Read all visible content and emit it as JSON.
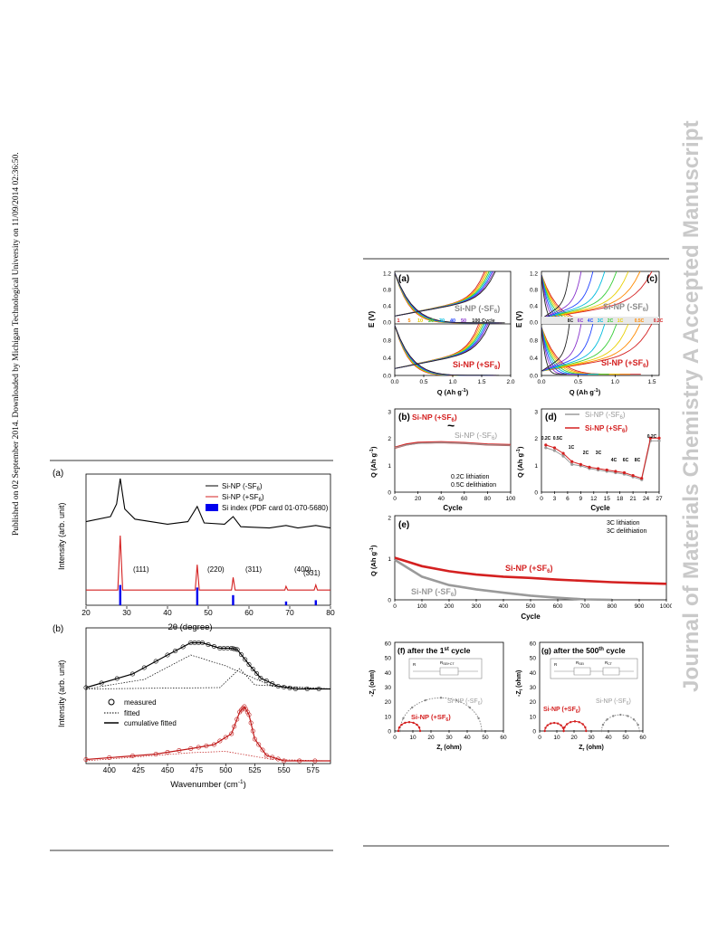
{
  "side_notice": "Published on 02 September 2014. Downloaded by Michigan Technological University on 11/09/2014 02:36:50.",
  "watermark": "Journal of Materials Chemistry A Accepted Manuscript",
  "left_figure": {
    "panel_a": {
      "label": "(a)",
      "legend": [
        "Si-NP (-SF",
        "Si-NP (+SF",
        "Si index (PDF card 01-070-5680)"
      ],
      "legend_sub": "6",
      "legend_close": ")",
      "peaks": [
        "(111)",
        "(220)",
        "(311)",
        "(400)",
        "(331)"
      ],
      "ylabel": "Intensity (arb. unit)",
      "xticks": [
        "20",
        "30",
        "40",
        "50",
        "60",
        "70",
        "80"
      ],
      "xlabel": "2θ (degree)",
      "colors": {
        "minus": "#000000",
        "plus": "#d42020",
        "index": "#0000ee"
      }
    },
    "panel_b": {
      "label": "(b)",
      "legend": [
        "measured",
        "fitted",
        "cumulative fitted"
      ],
      "ylabel": "Intensity (arb. unit)",
      "xticks": [
        "400",
        "425",
        "450",
        "475",
        "500",
        "525",
        "550",
        "575"
      ],
      "xlabel": "Wavenumber (cm",
      "xlabel_sup": "-1",
      "xlabel_close": ")"
    }
  },
  "right_figure": {
    "panel_a": {
      "label": "(a)",
      "upper": "Si-NP (-SF",
      "lower": "Si-NP (+SF",
      "sub": "6",
      "close": ")",
      "cycles": [
        "1",
        "5",
        "10",
        "20",
        "30",
        "40",
        "50",
        "100 Cycle"
      ],
      "yticks": [
        "1.2",
        "0.8",
        "0.4",
        "0.0"
      ],
      "xticks": [
        "0.0",
        "0.5",
        "1.0",
        "1.5",
        "2.0"
      ],
      "ylabel": "E (V)",
      "xlabel": "Q (Ah g",
      "xlabel_sup": "-1",
      "xlabel_close": ")"
    },
    "panel_c": {
      "label": "(c)",
      "upper": "Si-NP (-SF",
      "lower": "Si-NP (+SF",
      "sub": "6",
      "close": ")",
      "rates": [
        "8C",
        "6C",
        "4C",
        "3C",
        "2C",
        "1C",
        "0.5C",
        "0.2C"
      ],
      "yticks": [
        "1.2",
        "0.8",
        "0.4",
        "0.0"
      ],
      "xticks": [
        "0.0",
        "0.5",
        "1.0",
        "1.5"
      ],
      "ylabel": "E (V)",
      "xlabel": "Q (Ah g",
      "xlabel_sup": "-1",
      "xlabel_close": ")"
    },
    "panel_b": {
      "label": "(b)",
      "plus": "Si-NP (+SF",
      "minus": "Si-NP (-SF",
      "sub": "6",
      "close": ")",
      "approx": "~",
      "note1": "0.2C lithiation",
      "note2": "0.5C delithiation",
      "yticks": [
        "3",
        "2",
        "1",
        "0"
      ],
      "xticks": [
        "0",
        "20",
        "40",
        "60",
        "80",
        "100"
      ],
      "ylabel": "Q (Ah g",
      "ylabel_sup": "-1",
      "ylabel_close": ")",
      "xlabel": "Cycle"
    },
    "panel_d": {
      "label": "(d)",
      "minus": "Si-NP (-SF",
      "plus": "Si-NP (+SF",
      "sub": "6",
      "close": ")",
      "rates": [
        "0.2C",
        "0.5C",
        "1C",
        "2C",
        "3C",
        "4C",
        "6C",
        "8C",
        "0.2C"
      ],
      "yticks": [
        "3",
        "2",
        "1",
        "0"
      ],
      "xticks": [
        "0",
        "3",
        "6",
        "9",
        "12",
        "15",
        "18",
        "21",
        "24",
        "27"
      ],
      "ylabel": "Q (Ah g",
      "ylabel_sup": "-1",
      "ylabel_close": ")",
      "xlabel": "Cycle"
    },
    "panel_e": {
      "label": "(e)",
      "note1": "3C lithiation",
      "note2": "3C delithiation",
      "plus": "Si-NP (+SF",
      "minus": "Si-NP (-SF",
      "sub": "6",
      "close": ")",
      "yticks": [
        "2",
        "1",
        "0"
      ],
      "xticks": [
        "0",
        "100",
        "200",
        "300",
        "400",
        "500",
        "600",
        "700",
        "800",
        "900",
        "1000"
      ],
      "ylabel": "Q (Ah g",
      "ylabel_sup": "-1",
      "ylabel_close": ")",
      "xlabel": "Cycle"
    },
    "panel_f": {
      "label": "(f) after the 1",
      "sup": "st",
      "tail": " cycle",
      "plus": "Si-NP (+SF",
      "minus": "Si-NP (-SF",
      "sub": "6",
      "close": ")",
      "circuit": [
        "R",
        "R",
        "SEI+CT"
      ],
      "yticks": [
        "60",
        "50",
        "40",
        "30",
        "20",
        "10",
        "0"
      ],
      "xticks": [
        "0",
        "10",
        "20",
        "30",
        "40",
        "50",
        "60"
      ],
      "ylabel": "-Z",
      "ylabel_sub": "i",
      "ylabel_tail": " (ohm)",
      "xlabel": "Z",
      "xlabel_sub": "r",
      "xlabel_tail": " (ohm)"
    },
    "panel_g": {
      "label": "(g) after the 500",
      "sup": "th",
      "tail": " cycle",
      "plus": "Si-NP (+SF",
      "minus": "Si-NP (-SF",
      "sub": "6",
      "close": ")",
      "circuit": [
        "R",
        "R",
        "SEI",
        "R",
        "CT"
      ],
      "yticks": [
        "60",
        "50",
        "40",
        "30",
        "20",
        "10",
        "0"
      ],
      "xticks": [
        "0",
        "10",
        "20",
        "30",
        "40",
        "50",
        "60"
      ],
      "ylabel": "-Z",
      "ylabel_sub": "i",
      "ylabel_tail": " (ohm)",
      "xlabel": "Z",
      "xlabel_sub": "r",
      "xlabel_tail": " (ohm)"
    }
  },
  "chart_data": [
    {
      "type": "line",
      "title": "(a)",
      "xlabel": "2θ (degree)",
      "ylabel": "Intensity (arb. unit)",
      "xlim": [
        20,
        80
      ],
      "series": [
        {
          "name": "Si-NP (-SF6)",
          "x": [
            20,
            26,
            27.5,
            28.4,
            29.5,
            32,
            40,
            45,
            47.3,
            49,
            54,
            56.1,
            58,
            65,
            69.1,
            72,
            76.4,
            80
          ],
          "y": [
            0.66,
            0.7,
            0.8,
            1.0,
            0.76,
            0.68,
            0.64,
            0.66,
            0.78,
            0.65,
            0.64,
            0.7,
            0.62,
            0.61,
            0.63,
            0.61,
            0.63,
            0.61
          ]
        },
        {
          "name": "Si-NP (+SF6)",
          "x": [
            20,
            27.8,
            28.4,
            29,
            46.8,
            47.3,
            47.8,
            55.7,
            56.1,
            56.6,
            68.8,
            69.1,
            69.5,
            76,
            76.4,
            76.8,
            80
          ],
          "y": [
            0.12,
            0.12,
            0.55,
            0.12,
            0.12,
            0.32,
            0.12,
            0.12,
            0.22,
            0.12,
            0.12,
            0.15,
            0.12,
            0.12,
            0.16,
            0.12,
            0.12
          ]
        },
        {
          "name": "Si index (PDF card 01-070-5680)",
          "x": [
            28.4,
            47.3,
            56.1,
            69.1,
            76.4
          ],
          "y": [
            0.16,
            0.14,
            0.08,
            0.03,
            0.04
          ]
        }
      ]
    },
    {
      "type": "scatter",
      "title": "(b)",
      "xlabel": "Wavenumber (cm-1)",
      "ylabel": "Intensity (arb. unit)",
      "xlim": [
        380,
        590
      ],
      "series": [
        {
          "name": "Si-NP (-SF6)",
          "x": [
            380,
            420,
            450,
            470,
            480,
            495,
            505,
            510,
            520,
            530,
            545,
            560,
            590
          ],
          "y": [
            0.56,
            0.66,
            0.8,
            0.89,
            0.89,
            0.85,
            0.85,
            0.84,
            0.73,
            0.63,
            0.57,
            0.55,
            0.55
          ]
        },
        {
          "name": "Si-NP (+SF6)",
          "x": [
            380,
            440,
            470,
            490,
            505,
            512,
            516,
            520,
            525,
            535,
            550,
            590
          ],
          "y": [
            0.03,
            0.07,
            0.11,
            0.14,
            0.22,
            0.38,
            0.42,
            0.36,
            0.18,
            0.06,
            0.02,
            0.02
          ]
        }
      ]
    },
    {
      "type": "line",
      "title": "(b)",
      "xlabel": "Cycle",
      "ylabel": "Q (Ah g-1)",
      "xlim": [
        0,
        100
      ],
      "ylim": [
        0,
        3
      ],
      "series": [
        {
          "name": "Si-NP (+SF6)",
          "x": [
            0,
            10,
            20,
            40,
            60,
            80,
            100
          ],
          "y": [
            1.6,
            1.72,
            1.78,
            1.8,
            1.77,
            1.72,
            1.7
          ]
        },
        {
          "name": "Si-NP (-SF6)",
          "x": [
            0,
            10,
            20,
            40,
            60,
            80,
            100
          ],
          "y": [
            1.6,
            1.7,
            1.76,
            1.79,
            1.76,
            1.71,
            1.69
          ]
        }
      ]
    },
    {
      "type": "line",
      "title": "(d)",
      "xlabel": "Cycle",
      "ylabel": "Q (Ah g-1)",
      "xlim": [
        0,
        27
      ],
      "ylim": [
        0,
        3
      ],
      "series": [
        {
          "name": "Si-NP (-SF6)",
          "x": [
            1,
            3,
            5,
            7,
            9,
            11,
            13,
            15,
            17,
            19,
            21,
            23,
            25,
            27
          ],
          "y": [
            1.6,
            1.5,
            1.3,
            1.0,
            0.95,
            0.85,
            0.8,
            0.75,
            0.7,
            0.65,
            0.55,
            0.45,
            1.85,
            1.85
          ]
        },
        {
          "name": "Si-NP (+SF6)",
          "x": [
            1,
            3,
            5,
            7,
            9,
            11,
            13,
            15,
            17,
            19,
            21,
            23,
            25,
            27
          ],
          "y": [
            1.7,
            1.6,
            1.4,
            1.1,
            1.0,
            0.9,
            0.85,
            0.8,
            0.75,
            0.7,
            0.6,
            0.5,
            1.95,
            1.95
          ]
        }
      ]
    },
    {
      "type": "line",
      "title": "(e)",
      "xlabel": "Cycle",
      "ylabel": "Q (Ah g-1)",
      "xlim": [
        0,
        1000
      ],
      "ylim": [
        0,
        2
      ],
      "series": [
        {
          "name": "Si-NP (+SF6)",
          "x": [
            0,
            50,
            100,
            200,
            300,
            400,
            500,
            600,
            700,
            800,
            900,
            1000
          ],
          "y": [
            1.0,
            0.9,
            0.8,
            0.68,
            0.6,
            0.55,
            0.52,
            0.48,
            0.45,
            0.42,
            0.4,
            0.38
          ]
        },
        {
          "name": "Si-NP (-SF6)",
          "x": [
            0,
            50,
            100,
            200,
            300,
            400,
            500,
            600,
            700,
            800
          ],
          "y": [
            0.95,
            0.75,
            0.55,
            0.35,
            0.25,
            0.17,
            0.1,
            0.05,
            0.01,
            0.0
          ]
        }
      ]
    }
  ]
}
